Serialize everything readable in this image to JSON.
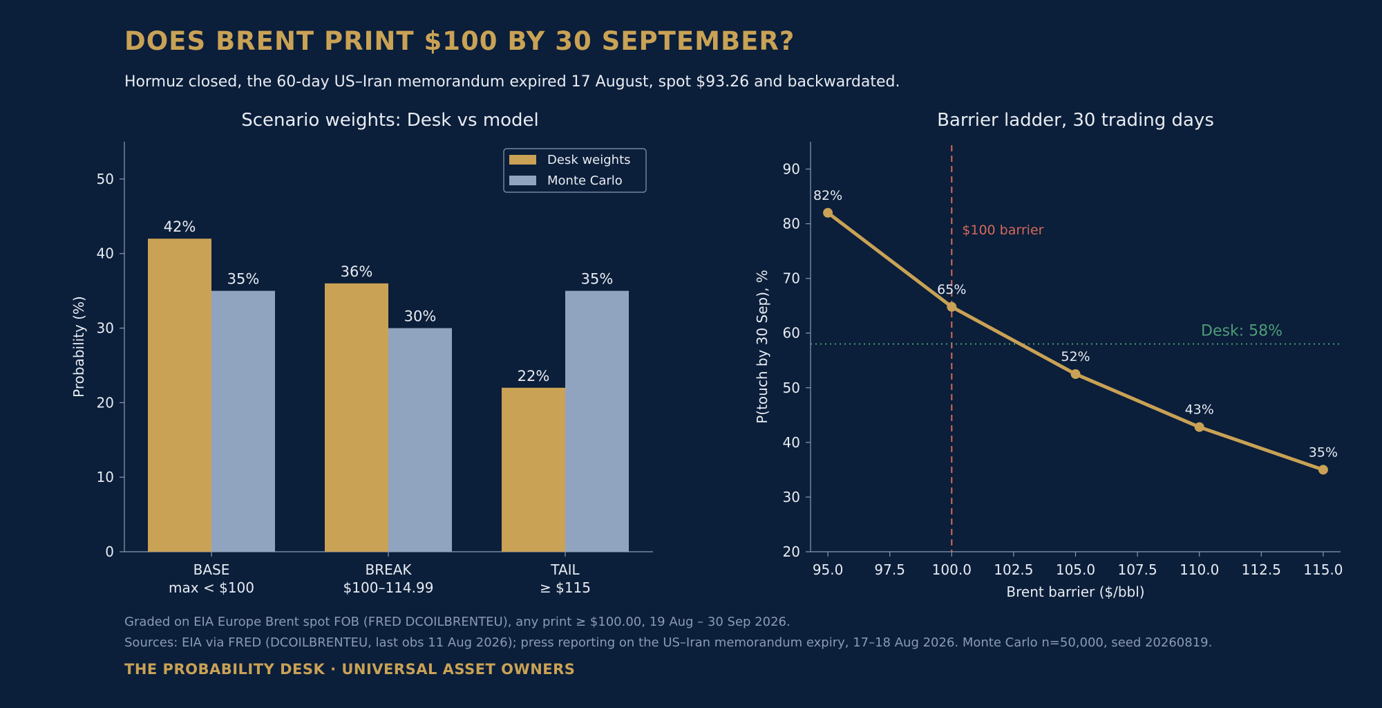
{
  "header": {
    "title": "DOES BRENT PRINT $100 BY 30 SEPTEMBER?",
    "subtitle": "Hormuz closed, the 60-day US–Iran memorandum expired 17 August, spot $93.26 and backwardated."
  },
  "footer": {
    "note1": "Graded on EIA Europe Brent spot FOB (FRED DCOILBRENTEU), any print ≥ $100.00, 19 Aug – 30 Sep 2026.",
    "note2": "Sources: EIA via FRED (DCOILBRENTEU, last obs 11 Aug 2026); press reporting on the US–Iran memorandum expiry, 17–18 Aug 2026.  Monte Carlo n=50,000, seed 20260819.",
    "brand": "THE PROBABILITY DESK · UNIVERSAL ASSET OWNERS"
  },
  "colors": {
    "background": "#0b1e3a",
    "gold": "#c9a255",
    "steel": "#91a4bf",
    "red": "#d46a5a",
    "green": "#4f9d78",
    "text": "#e8ecf2",
    "axis": "#8b9bb4"
  },
  "chart_data": [
    {
      "type": "bar",
      "title": "Scenario weights: Desk vs model",
      "xlabel": "",
      "ylabel": "Probability (%)",
      "ylim": [
        0,
        55
      ],
      "yticks": [
        0,
        10,
        20,
        30,
        40,
        50
      ],
      "categories": [
        [
          "BASE",
          "max < $100"
        ],
        [
          "BREAK",
          "$100–114.99"
        ],
        [
          "TAIL",
          "≥ $115"
        ]
      ],
      "series": [
        {
          "name": "Desk weights",
          "color": "#c9a255",
          "values": [
            42,
            36,
            22
          ],
          "labels": [
            "42%",
            "36%",
            "22%"
          ]
        },
        {
          "name": "Monte Carlo",
          "color": "#91a4bf",
          "values": [
            35,
            30,
            35
          ],
          "labels": [
            "35%",
            "30%",
            "35%"
          ]
        }
      ],
      "legend": "top-right",
      "grid": false
    },
    {
      "type": "line",
      "title": "Barrier ladder, 30 trading days",
      "xlabel": "Brent barrier ($/bbl)",
      "ylabel": "P(touch by 30 Sep), %",
      "xlim": [
        94.3,
        115.7
      ],
      "ylim": [
        20,
        95
      ],
      "xticks": [
        95.0,
        97.5,
        100.0,
        102.5,
        105.0,
        107.5,
        110.0,
        112.5,
        115.0
      ],
      "xtick_labels": [
        "95.0",
        "97.5",
        "100.0",
        "102.5",
        "105.0",
        "107.5",
        "110.0",
        "112.5",
        "115.0"
      ],
      "yticks": [
        20,
        30,
        40,
        50,
        60,
        70,
        80,
        90
      ],
      "x": [
        95,
        100,
        105,
        110,
        115
      ],
      "y": [
        82,
        64.8,
        52.5,
        42.8,
        35
      ],
      "point_labels": [
        "82%",
        "65%",
        "52%",
        "43%",
        "35%"
      ],
      "color": "#c9a255",
      "barrier": {
        "x": 100,
        "label": "$100 barrier",
        "color": "#d46a5a"
      },
      "desk_line": {
        "y": 58,
        "label": "Desk: 58%",
        "color": "#4f9d78"
      },
      "grid": false
    }
  ]
}
